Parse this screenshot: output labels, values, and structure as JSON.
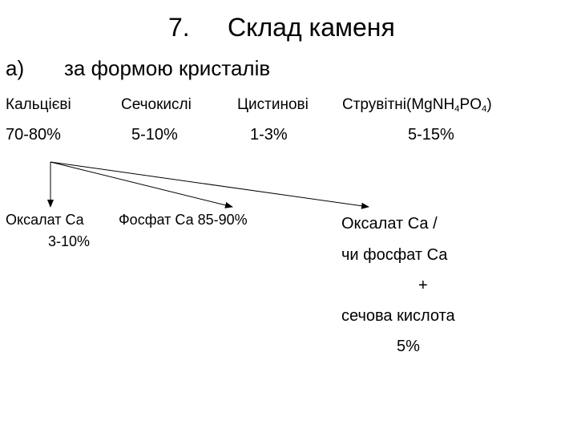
{
  "title": {
    "number": "7.",
    "text": "Склад каменя"
  },
  "subheading": {
    "marker": "а)",
    "text": "за формою кристалів"
  },
  "categories": [
    {
      "label": "Кальцієві",
      "percent": "70-80%"
    },
    {
      "label": "Сечокислі",
      "percent": "5-10%"
    },
    {
      "label": "Цистинові",
      "percent": "1-3%"
    },
    {
      "label_prefix": "Струвітні(MgNH",
      "sub1": "4",
      "label_mid": "PO",
      "sub2": "4",
      "label_suffix": ")",
      "percent": "5-15%"
    }
  ],
  "subtypes": [
    {
      "lines": [
        "Оксалат Са",
        "3-10%"
      ]
    },
    {
      "lines": [
        "Фосфат Са 85-90%"
      ]
    },
    {
      "lines": [
        "Оксалат Са /",
        "чи фосфат Са",
        "+",
        "сечова кислота",
        "5%"
      ]
    }
  ]
}
